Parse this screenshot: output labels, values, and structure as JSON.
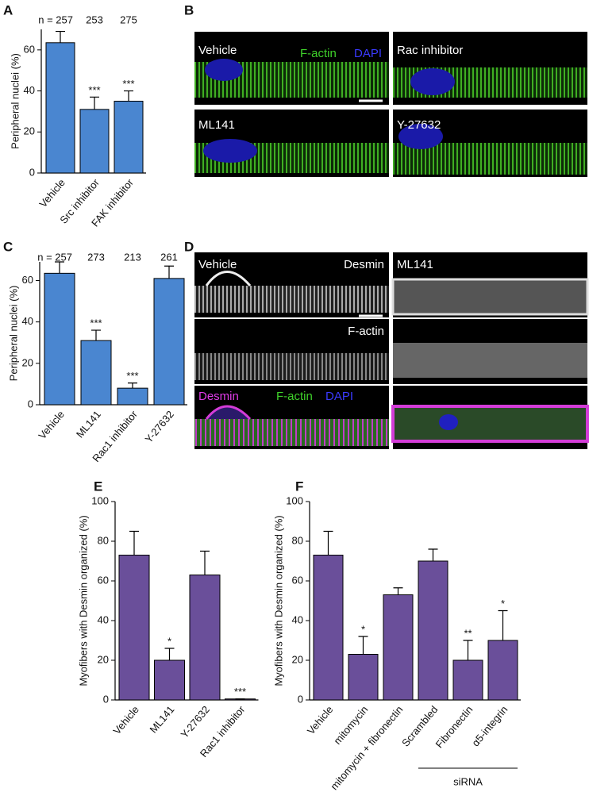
{
  "chart_data": [
    {
      "type": "bar",
      "panel_label": "A",
      "y_label": "Peripheral nuclei (%)",
      "n_labels": [
        "n = 257",
        "253",
        "275"
      ],
      "categories": [
        "Vehicle",
        "Src inhibitor",
        "FAK inhibitor"
      ],
      "values": [
        63.5,
        31,
        35
      ],
      "errors": [
        5.5,
        6,
        5
      ],
      "significance": [
        null,
        "***",
        "***"
      ],
      "color": "#4a86d0",
      "ylim": [
        0,
        70
      ],
      "yticks": [
        0,
        20,
        40,
        60
      ]
    },
    {
      "type": "bar",
      "panel_label": "C",
      "y_label": "Peripheral nuclei (%)",
      "n_labels": [
        "n = 257",
        "273",
        "213",
        "261"
      ],
      "categories": [
        "Vehicle",
        "ML141",
        "Rac1 inhibitor",
        "Y-27632"
      ],
      "values": [
        63.5,
        31,
        8,
        61
      ],
      "errors": [
        5.5,
        5,
        2.5,
        6
      ],
      "significance": [
        null,
        "***",
        "***",
        null
      ],
      "color": "#4a86d0",
      "ylim": [
        0,
        69
      ],
      "yticks": [
        0,
        20,
        40,
        60
      ]
    },
    {
      "type": "bar",
      "panel_label": "E",
      "y_label": "Myofibers with Desmin organized (%)",
      "categories": [
        "Vehicle",
        "ML141",
        "Y-27632",
        "Rac1 inhibitor"
      ],
      "values": [
        73,
        20,
        63,
        0.5
      ],
      "errors": [
        12,
        6,
        12,
        0
      ],
      "significance": [
        null,
        "*",
        null,
        "***"
      ],
      "color": "#6a4f9a",
      "ylim": [
        0,
        100
      ],
      "yticks": [
        0,
        20,
        40,
        60,
        80,
        100
      ]
    },
    {
      "type": "bar",
      "panel_label": "F",
      "y_label": "Myofibers with Desmin organized (%)",
      "categories": [
        "Vehicle",
        "mitomycin",
        "mitomycin + fibronectin",
        "Scrambled",
        "Fibronectin",
        "α5-integrin"
      ],
      "values": [
        73,
        23,
        53,
        70,
        20,
        30
      ],
      "errors": [
        12,
        9,
        3.5,
        6,
        10,
        15
      ],
      "significance": [
        null,
        "*",
        null,
        null,
        "**",
        "*"
      ],
      "bracket_label": "siRNA",
      "color": "#6a4f9a",
      "ylim": [
        0,
        100
      ],
      "yticks": [
        0,
        20,
        40,
        60,
        80,
        100
      ]
    }
  ],
  "panel_B": {
    "label": "B",
    "images": [
      {
        "title": "Vehicle",
        "stain_1": "F-actin",
        "stain_2": "DAPI"
      },
      {
        "title": "Rac inhibitor"
      },
      {
        "title": "ML141"
      },
      {
        "title": "Y-27632"
      }
    ]
  },
  "panel_D": {
    "label": "D",
    "rows": [
      {
        "left": "Vehicle",
        "left_stain": "Desmin",
        "right": "ML141"
      },
      {
        "stain": "F-actin"
      },
      {
        "stain_1": "Desmin",
        "stain_2": "F-actin",
        "stain_3": "DAPI"
      }
    ]
  }
}
